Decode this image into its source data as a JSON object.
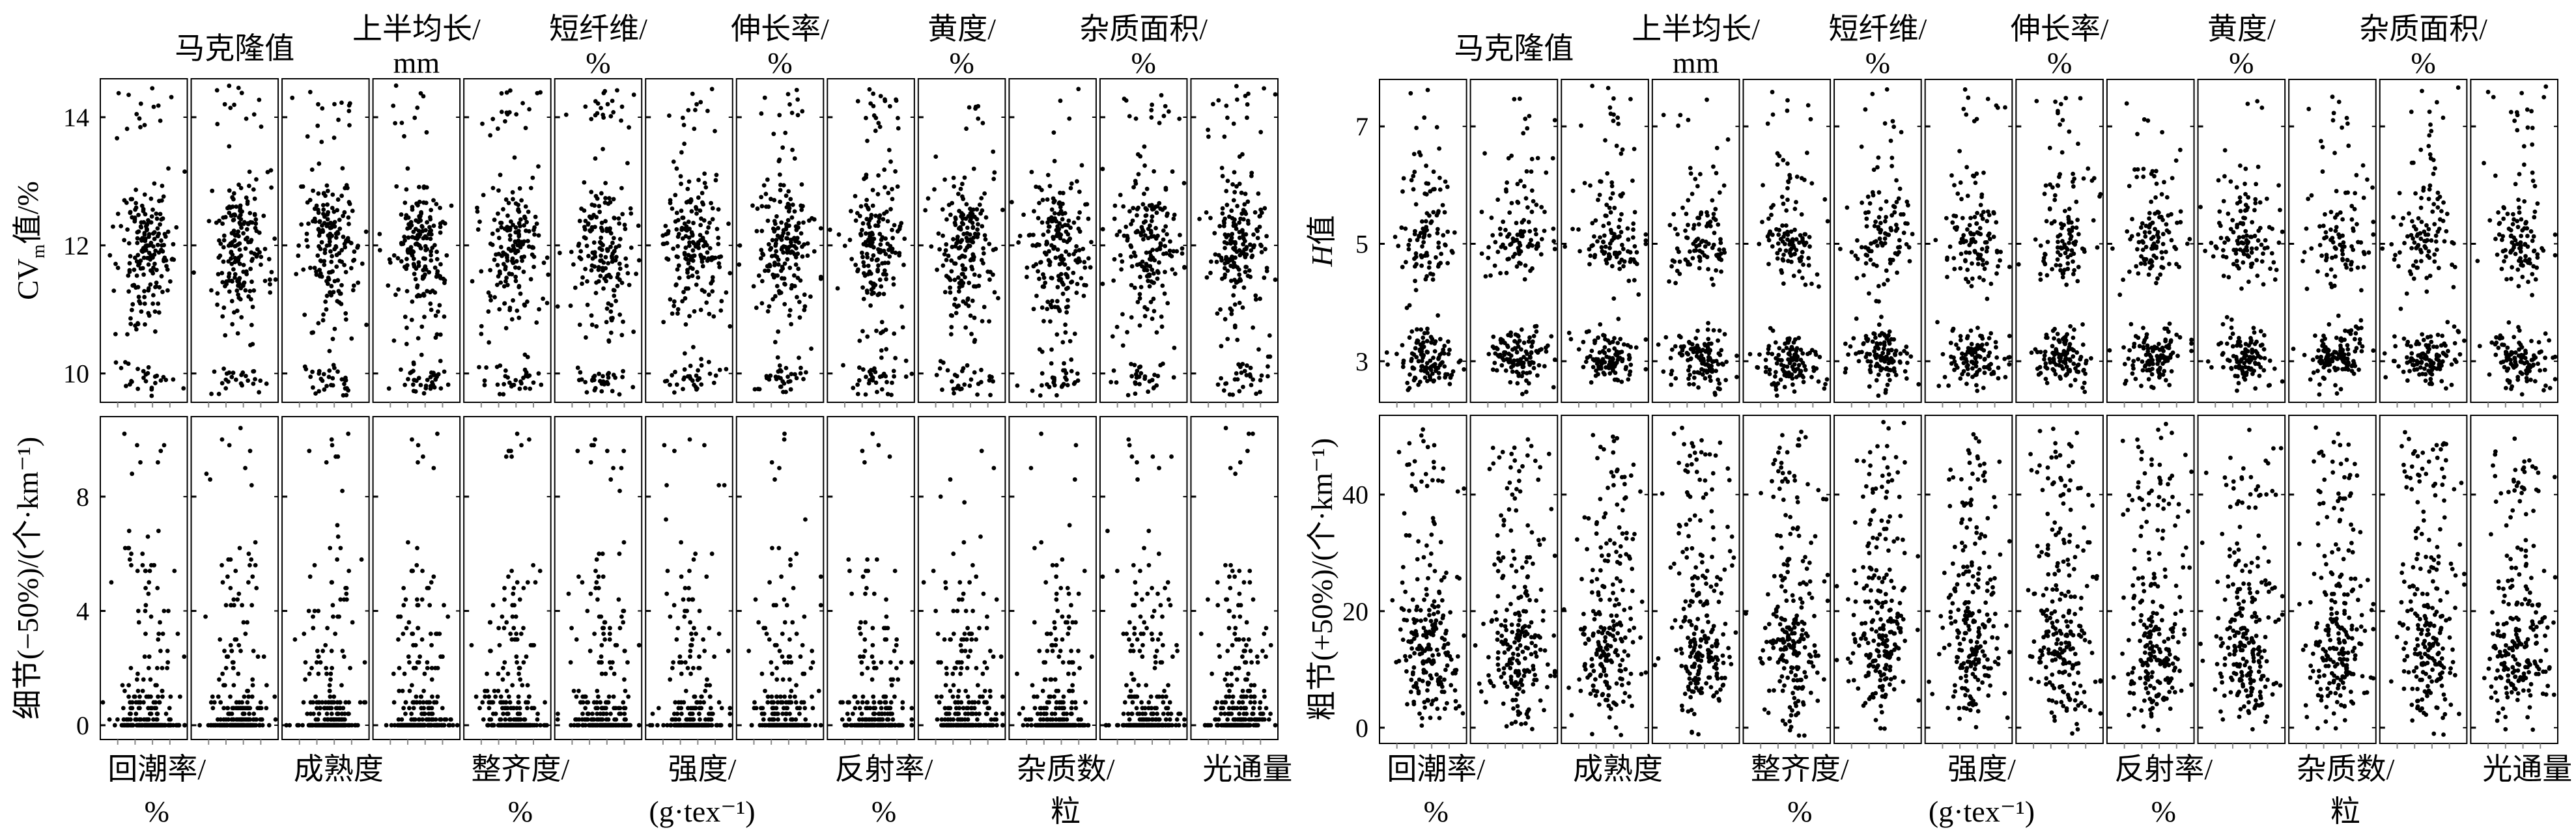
{
  "chart_data": [
    {
      "type": "scatter",
      "panel": "left",
      "columns_top": [
        {
          "col": 1,
          "line1": "马克隆值",
          "line2": ""
        },
        {
          "col": 3,
          "line1": "上半均长/",
          "line2": "mm"
        },
        {
          "col": 5,
          "line1": "短纤维/",
          "line2": "%"
        },
        {
          "col": 7,
          "line1": "伸长率/",
          "line2": "%"
        },
        {
          "col": 9,
          "line1": "黄度/",
          "line2": "%"
        },
        {
          "col": 11,
          "line1": "杂质面积/",
          "line2": "%"
        }
      ],
      "columns_bottom": [
        {
          "col": 0,
          "line1": "回潮率/",
          "line2": "%"
        },
        {
          "col": 2,
          "line1": "成熟度",
          "line2": ""
        },
        {
          "col": 4,
          "line1": "整齐度/",
          "line2": "%"
        },
        {
          "col": 6,
          "line1": "强度/",
          "line2": "(g·tex⁻¹)"
        },
        {
          "col": 8,
          "line1": "反射率/",
          "line2": "%"
        },
        {
          "col": 10,
          "line1": "杂质数/",
          "line2": "粒"
        },
        {
          "col": 12,
          "line1": "光通量",
          "line2": ""
        }
      ],
      "rows": [
        {
          "ylabel_main": "CV",
          "ylabel_sub": "m",
          "ylabel_rest": "值/%",
          "ylim": [
            9.55,
            14.6
          ],
          "yticks": [
            "10",
            "12",
            "14"
          ],
          "ytick_values": [
            10,
            12,
            14
          ],
          "clusters": [
            {
              "center": 12,
              "spread": 0.55,
              "weight": 0.72
            },
            {
              "center": 9.9,
              "spread": 0.15,
              "weight": 0.14
            },
            {
              "center": 14.1,
              "spread": 0.25,
              "weight": 0.06
            },
            {
              "center": 11,
              "spread": 0.6,
              "weight": 0.08
            }
          ]
        },
        {
          "ylabel": "细节(−50%)/(个·km⁻¹)",
          "ylim": [
            -0.5,
            10.8
          ],
          "yticks": [
            "0",
            "4",
            "8"
          ],
          "ytick_values": [
            0,
            4,
            8
          ],
          "clusters": [
            {
              "center": 0,
              "spread": 0.1,
              "weight": 0.45
            },
            {
              "center": 0.6,
              "spread": 0.3,
              "weight": 0.25
            },
            {
              "center": 2.2,
              "spread": 0.8,
              "weight": 0.15
            },
            {
              "center": 4.5,
              "spread": 1.2,
              "weight": 0.12
            },
            {
              "center": 9.5,
              "spread": 0.6,
              "weight": 0.03
            }
          ]
        }
      ]
    },
    {
      "type": "scatter",
      "panel": "right",
      "columns_top": [
        {
          "col": 1,
          "line1": "马克隆值",
          "line2": ""
        },
        {
          "col": 3,
          "line1": "上半均长/",
          "line2": "mm"
        },
        {
          "col": 5,
          "line1": "短纤维/",
          "line2": "%"
        },
        {
          "col": 7,
          "line1": "伸长率/",
          "line2": "%"
        },
        {
          "col": 9,
          "line1": "黄度/",
          "line2": "%"
        },
        {
          "col": 11,
          "line1": "杂质面积/",
          "line2": "%"
        }
      ],
      "columns_bottom": [
        {
          "col": 0,
          "line1": "回潮率/",
          "line2": "%"
        },
        {
          "col": 2,
          "line1": "成熟度",
          "line2": ""
        },
        {
          "col": 4,
          "line1": "整齐度/",
          "line2": "%"
        },
        {
          "col": 6,
          "line1": "强度/",
          "line2": "(g·tex⁻¹)"
        },
        {
          "col": 8,
          "line1": "反射率/",
          "line2": "%"
        },
        {
          "col": 10,
          "line1": "杂质数/",
          "line2": "粒"
        },
        {
          "col": 12,
          "line1": "光通量",
          "line2": ""
        }
      ],
      "rows": [
        {
          "ylabel_main": "H",
          "ylabel_sub": "",
          "ylabel_rest": "值",
          "ylim": [
            2.3,
            7.8
          ],
          "yticks": [
            "3",
            "5",
            "7"
          ],
          "ytick_values": [
            3,
            5,
            7
          ],
          "clusters": [
            {
              "center": 3.05,
              "spread": 0.25,
              "weight": 0.5
            },
            {
              "center": 5.0,
              "spread": 0.35,
              "weight": 0.38
            },
            {
              "center": 6.0,
              "spread": 0.35,
              "weight": 0.08
            },
            {
              "center": 7.3,
              "spread": 0.3,
              "weight": 0.04
            }
          ]
        },
        {
          "ylabel": "粗节(+50%)/(个·km⁻¹)",
          "ylim": [
            -2.7,
            53.6
          ],
          "yticks": [
            "0",
            "20",
            "40"
          ],
          "ytick_values": [
            0,
            20,
            40
          ],
          "clusters": [
            {
              "center": 12,
              "spread": 6,
              "weight": 0.65
            },
            {
              "center": 28,
              "spread": 8,
              "weight": 0.25
            },
            {
              "center": 45,
              "spread": 4,
              "weight": 0.1
            }
          ]
        }
      ]
    }
  ],
  "n_columns": 13
}
